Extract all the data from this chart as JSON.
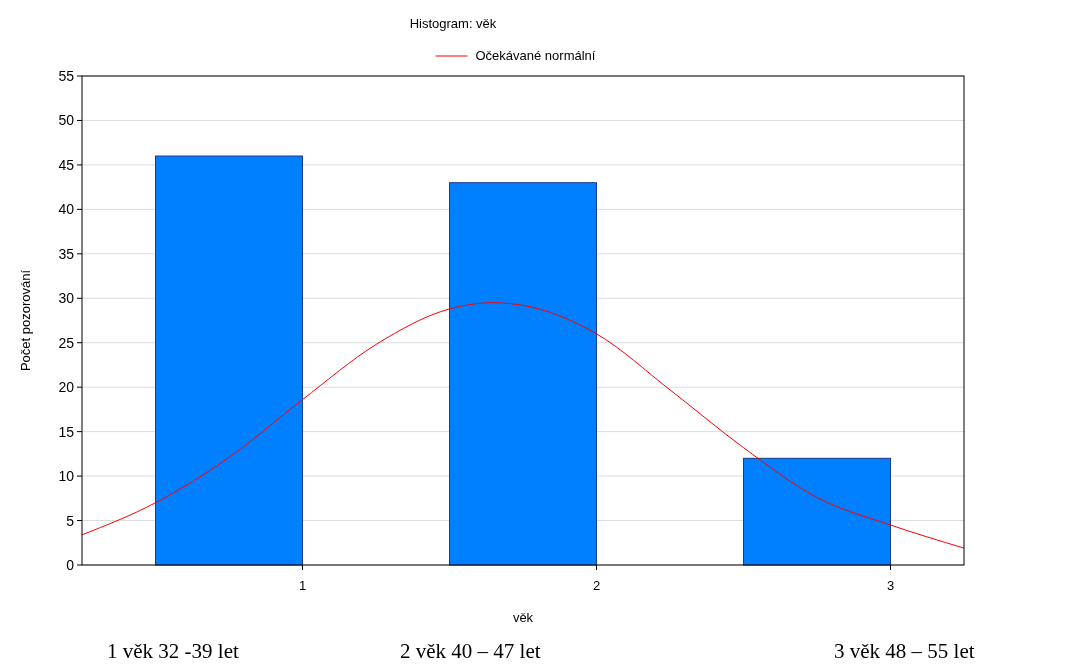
{
  "chart_data": {
    "type": "histogram",
    "title": "Histogram: věk",
    "xlabel": "věk",
    "ylabel": "Počet pozorování",
    "bins": [
      0.5,
      1,
      1.5,
      2,
      2.5,
      3
    ],
    "values": [
      46,
      0,
      43,
      0,
      12
    ],
    "color": "#0080ff",
    "series": [
      {
        "type": "line",
        "name": "Očekávané normální",
        "color": "#ff0000",
        "x": [
          0.25,
          0.5,
          0.75,
          1,
          1.25,
          1.5,
          1.646,
          1.75,
          2,
          2.25,
          2.5,
          2.75,
          3,
          3.25
        ],
        "values": [
          3.4,
          7.0,
          12.1,
          18.6,
          24.8,
          28.8,
          29.5,
          29.2,
          26.0,
          19.7,
          13.2,
          7.6,
          4.5,
          1.9
        ]
      }
    ],
    "xlim": [
      0.25,
      3.25
    ],
    "xticks": [
      1,
      2,
      3
    ],
    "ylim": [
      0,
      55
    ],
    "yticks": [
      0,
      5,
      10,
      15,
      20,
      25,
      30,
      35,
      40,
      45,
      50,
      55
    ],
    "grid": "y",
    "legend": "top",
    "annotations": [
      "1 věk 32 -39 let",
      "2 věk 40 – 47 let",
      "3 věk 48 – 55 let"
    ]
  }
}
